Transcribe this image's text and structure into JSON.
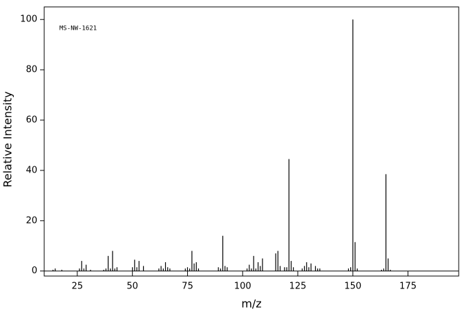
{
  "chart_data": {
    "type": "stem",
    "annotation": "MS-NW-1621",
    "x_label": "m/z",
    "y_label": "Relative Intensity",
    "color": "#000000",
    "x": [
      14,
      15,
      18,
      26,
      27,
      28,
      29,
      31,
      37,
      38,
      39,
      40,
      41,
      42,
      43,
      50,
      51,
      52,
      53,
      55,
      62,
      63,
      64,
      65,
      66,
      67,
      74,
      75,
      76,
      77,
      78,
      79,
      80,
      89,
      90,
      91,
      92,
      93,
      102,
      103,
      104,
      105,
      106,
      107,
      108,
      109,
      115,
      116,
      117,
      119,
      120,
      121,
      122,
      123,
      127,
      128,
      129,
      130,
      131,
      133,
      134,
      135,
      148,
      149,
      150,
      151,
      152,
      163,
      164,
      165,
      166,
      167
    ],
    "values": [
      0.5,
      1,
      0.5,
      1,
      4,
      1,
      2.5,
      0.5,
      0.5,
      1,
      6,
      1,
      8,
      1,
      1.5,
      1.5,
      4.5,
      1.5,
      4,
      2,
      1,
      2,
      1,
      3.5,
      1.5,
      1,
      1,
      1.5,
      1,
      8,
      3,
      3.5,
      1,
      1.5,
      1,
      14,
      2,
      1.5,
      1,
      2.5,
      1,
      6,
      1,
      3.5,
      2,
      5,
      7,
      8,
      2,
      1.5,
      1.5,
      44.5,
      4,
      1.5,
      1,
      2,
      3.5,
      1.5,
      3,
      2,
      1,
      1,
      1,
      1.5,
      100,
      11.5,
      1,
      0.5,
      1,
      38.5,
      5,
      0.5
    ],
    "xlim": [
      10,
      198
    ],
    "ylim": [
      -2,
      105
    ],
    "xticks": [
      25,
      50,
      75,
      100,
      125,
      150,
      175
    ],
    "yticks": [
      0,
      20,
      40,
      60,
      80,
      100
    ]
  }
}
